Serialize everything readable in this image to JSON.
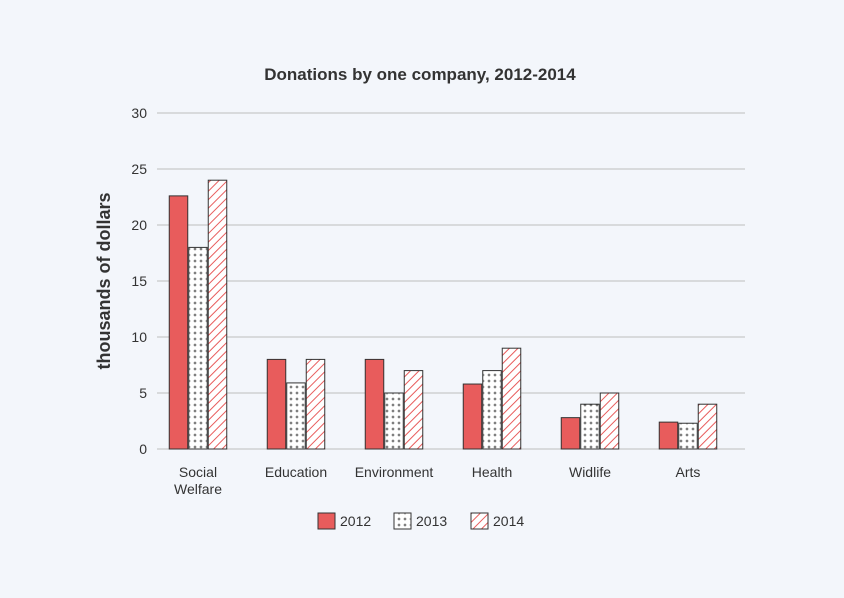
{
  "chart_data": {
    "type": "bar",
    "title": "Donations by one company, 2012-2014",
    "xlabel": "",
    "ylabel": "thousands of dollars",
    "ylim": [
      0,
      30
    ],
    "yticks": [
      0,
      5,
      10,
      15,
      20,
      25,
      30
    ],
    "grid": true,
    "legend_position": "bottom",
    "categories": [
      [
        "Social",
        "Welfare"
      ],
      [
        "Education"
      ],
      [
        "Environment"
      ],
      [
        "Health"
      ],
      [
        "Widlife"
      ],
      [
        "Arts"
      ]
    ],
    "series": [
      {
        "name": "2012",
        "pattern": "solid",
        "color": "#e85c5c",
        "values": [
          22.6,
          8.0,
          8.0,
          5.8,
          2.8,
          2.4
        ]
      },
      {
        "name": "2013",
        "pattern": "dots",
        "color": "#333333",
        "values": [
          18.0,
          5.9,
          5.0,
          7.0,
          4.0,
          2.3
        ]
      },
      {
        "name": "2014",
        "pattern": "hatch",
        "color": "#e85c5c",
        "values": [
          24.0,
          8.0,
          7.0,
          9.0,
          5.0,
          4.0
        ]
      }
    ]
  }
}
